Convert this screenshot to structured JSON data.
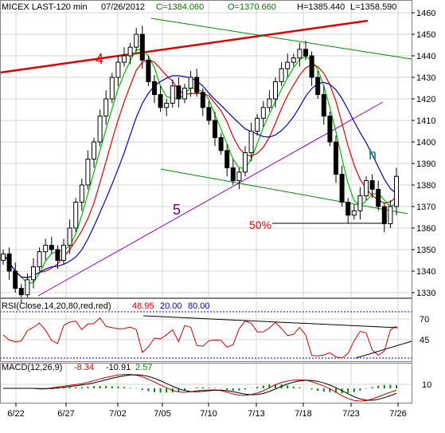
{
  "header": {
    "symbol": "MICEX LAST-120 min",
    "date": "07/26/2012",
    "close": "C=1384.060",
    "open": "O=1370.660",
    "high": "H=1385.440",
    "low": "L=1358.590"
  },
  "rsi_header": {
    "label": "RSI(Close,14,20,80,red,red)",
    "value": "48.95",
    "lower": "20.00",
    "upper": "80.00",
    "value_color": "#cc0000",
    "level_color": "#0000cc"
  },
  "macd_header": {
    "label": "MACD(12,26,9)",
    "macd": "-8.34",
    "signal": "-10.91",
    "hist": "2.57",
    "macd_color": "#cc0000",
    "signal_color": "#000000",
    "hist_color": "#008800"
  },
  "annotations": {
    "four": "4",
    "five": "5",
    "h": "h",
    "fifty": "50%",
    "four_color": "#dd0000",
    "five_color": "#660066",
    "h_color": "#008866",
    "fifty_color": "#dd0000"
  },
  "price_axis": {
    "ticks": [
      "1460",
      "1450",
      "1440",
      "1430",
      "1420",
      "1410",
      "1400",
      "1390",
      "1380",
      "1370",
      "1360",
      "1350",
      "1340",
      "1330"
    ]
  },
  "rsi_axis": {
    "ticks": [
      "70",
      "45"
    ]
  },
  "macd_axis": {
    "ticks": [
      "10"
    ]
  },
  "x_axis": {
    "labels": [
      "6/22",
      "6/27",
      "7/02",
      "7/05",
      "7/10",
      "7/13",
      "7/18",
      "7/23",
      "7/26"
    ]
  },
  "colors": {
    "grid": "#d4d4d4",
    "candle": "#000000",
    "ma_green": "#00bb00",
    "ma_red": "#dd0000",
    "ma_blue": "#0000cc",
    "trend_red": "#dd0000",
    "trend_green": "#008800",
    "trend_purple": "#8800aa",
    "level_line": "#000000"
  },
  "chart_data": [
    {
      "type": "candlestick",
      "title": "MICEX LAST-120 min",
      "ylim": [
        1322,
        1465
      ],
      "x_labels": [
        "6/22",
        "6/27",
        "7/02",
        "7/05",
        "7/10",
        "7/13",
        "7/18",
        "7/23",
        "7/26"
      ],
      "close_series_approx": [
        1348,
        1340,
        1332,
        1329,
        1336,
        1342,
        1349,
        1352,
        1350,
        1345,
        1352,
        1360,
        1372,
        1380,
        1392,
        1400,
        1412,
        1420,
        1430,
        1437,
        1440,
        1444,
        1450,
        1438,
        1428,
        1422,
        1416,
        1418,
        1426,
        1420,
        1425,
        1430,
        1423,
        1416,
        1410,
        1402,
        1396,
        1388,
        1382,
        1386,
        1395,
        1405,
        1411,
        1416,
        1420,
        1428,
        1434,
        1437,
        1439,
        1443,
        1440,
        1430,
        1422,
        1412,
        1400,
        1385,
        1372,
        1366,
        1368,
        1375,
        1382,
        1378,
        1370,
        1362,
        1370,
        1384
      ],
      "moving_averages": [
        {
          "name": "green",
          "color": "#00bb00"
        },
        {
          "name": "red",
          "color": "#dd0000"
        },
        {
          "name": "blue",
          "color": "#0000cc"
        }
      ],
      "horizontal_levels": [
        {
          "label": "50%",
          "value": 1350
        }
      ]
    },
    {
      "type": "line",
      "title": "RSI(Close,14,20,80,red,red)",
      "levels": [
        20,
        80
      ],
      "last_value": 48.95,
      "axis_ticks": [
        70,
        45
      ]
    },
    {
      "type": "line",
      "title": "MACD(12,26,9)",
      "macd": -8.34,
      "signal": -10.91,
      "histogram": 2.57,
      "axis_ticks": [
        10
      ]
    }
  ]
}
